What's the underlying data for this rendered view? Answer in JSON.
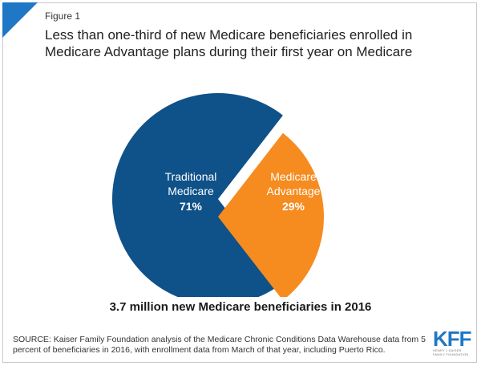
{
  "figure_label": "Figure 1",
  "title": "Less than one-third of new Medicare beneficiaries enrolled in Medicare Advantage plans during their first year on Medicare",
  "colors": {
    "traditional": "#0f5189",
    "advantage": "#f68b1f",
    "accent": "#1f77c5"
  },
  "chart_data": {
    "type": "pie",
    "title": "Less than one-third of new Medicare beneficiaries enrolled in Medicare Advantage plans during their first year on Medicare",
    "slices": [
      {
        "label": "Traditional Medicare",
        "value": 71,
        "value_label": "71%",
        "color": "#0f5189"
      },
      {
        "label": "Medicare Advantage",
        "value": 29,
        "value_label": "29%",
        "color": "#f68b1f",
        "exploded": true
      }
    ],
    "caption": "3.7 million new Medicare beneficiaries in 2016"
  },
  "labels": {
    "traditional_line1": "Traditional",
    "traditional_line2": "Medicare",
    "traditional_pct": "71%",
    "advantage_line1": "Medicare",
    "advantage_line2": "Advantage",
    "advantage_pct": "29%"
  },
  "caption": "3.7 million new Medicare beneficiaries in 2016",
  "source": "SOURCE: Kaiser Family Foundation analysis of the Medicare Chronic Conditions Data Warehouse data from 5 percent of beneficiaries in 2016, with enrollment data from March of that year, including Puerto Rico.",
  "logo": {
    "mark": "KFF",
    "sub": "HENRY J KAISER FAMILY FOUNDATION"
  }
}
